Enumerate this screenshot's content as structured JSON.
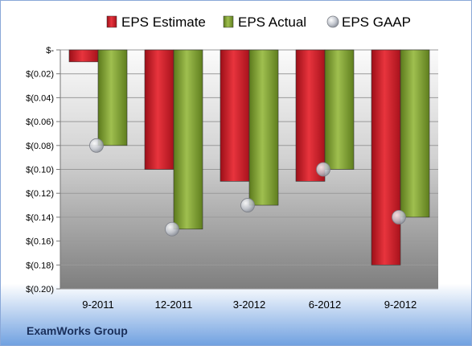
{
  "chart_data": {
    "type": "bar",
    "categories": [
      "9-2011",
      "12-2011",
      "3-2012",
      "6-2012",
      "9-2012"
    ],
    "series": [
      {
        "name": "EPS Estimate",
        "values": [
          -0.01,
          -0.1,
          -0.11,
          -0.11,
          -0.18
        ],
        "color": "#cc1f2a",
        "kind": "bar"
      },
      {
        "name": "EPS Actual",
        "values": [
          -0.08,
          -0.15,
          -0.13,
          -0.1,
          -0.14
        ],
        "color": "#7a9a2e",
        "kind": "bar"
      },
      {
        "name": "EPS GAAP",
        "values": [
          -0.08,
          -0.15,
          -0.13,
          -0.1,
          -0.14
        ],
        "color": "#b8bcc4",
        "kind": "marker"
      }
    ],
    "ylim": [
      -0.2,
      0
    ],
    "yticks": [
      0,
      -0.02,
      -0.04,
      -0.06,
      -0.08,
      -0.1,
      -0.12,
      -0.14,
      -0.16,
      -0.18,
      -0.2
    ],
    "ytick_labels": [
      "$-",
      "$(0.02)",
      "$(0.04)",
      "$(0.06)",
      "$(0.08)",
      "$(0.10)",
      "$(0.12)",
      "$(0.14)",
      "$(0.16)",
      "$(0.18)",
      "$(0.20)"
    ],
    "grid": true,
    "legend_position": "top",
    "footer": "ExamWorks Group"
  }
}
